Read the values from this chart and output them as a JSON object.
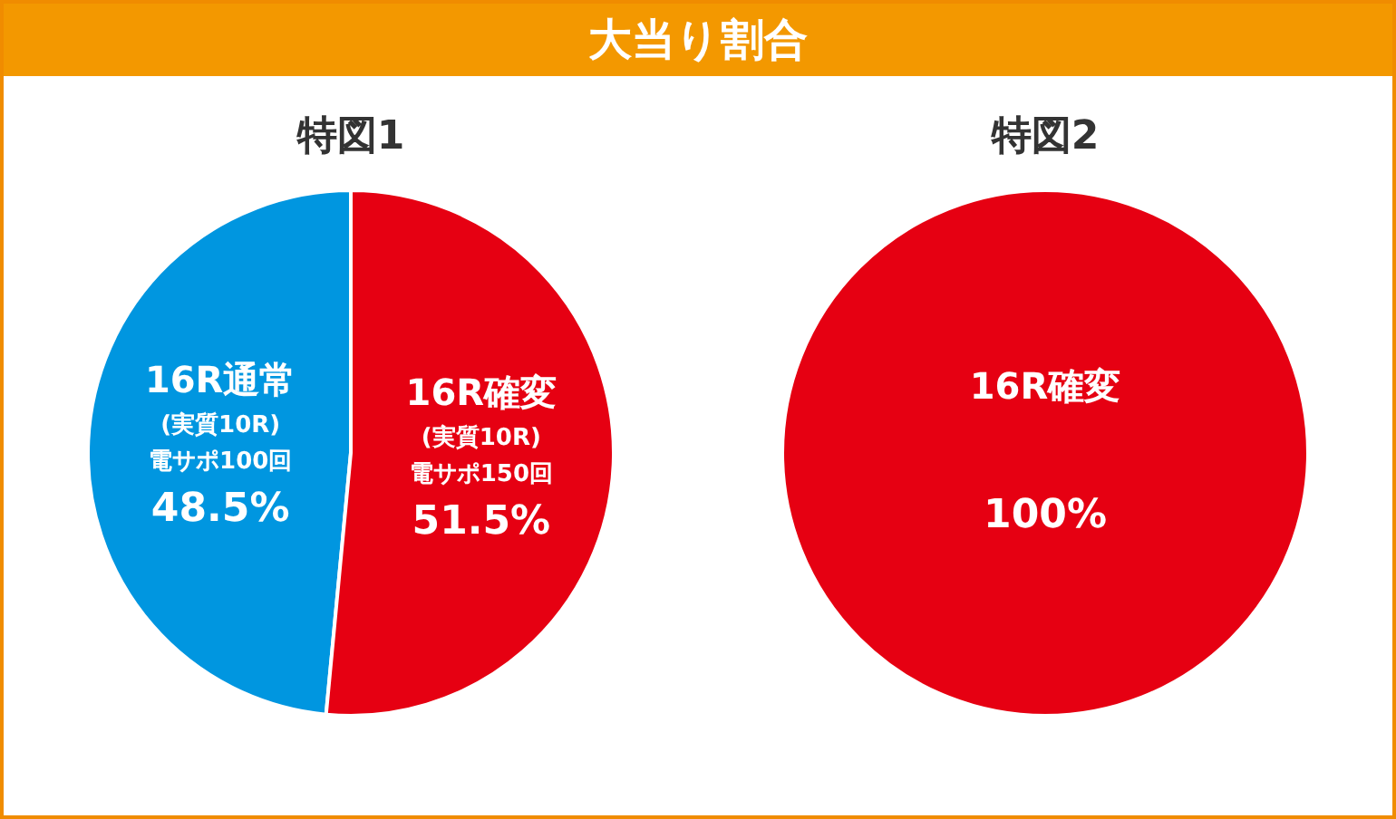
{
  "chart_data": [
    {
      "type": "pie",
      "title": "大当り割合",
      "subtitle": "特図1",
      "categories": [
        "16R通常",
        "16R確変"
      ],
      "values": [
        48.5,
        51.5
      ],
      "colors": [
        "#0096e0",
        "#e60012"
      ],
      "value_labels": [
        "48.5%",
        "51.5%"
      ],
      "annotations": [
        {
          "text": "(実質10R)",
          "x": "16R通常"
        },
        {
          "text": "電サポ100回",
          "x": "16R通常"
        },
        {
          "text": "(実質10R)",
          "x": "16R確変"
        },
        {
          "text": "電サポ150回",
          "x": "16R確変"
        }
      ],
      "legend": false
    },
    {
      "type": "pie",
      "subtitle": "特図2",
      "categories": [
        "16R確変"
      ],
      "values": [
        100
      ],
      "colors": [
        "#e60012"
      ],
      "value_labels": [
        "100%"
      ],
      "legend": false
    }
  ]
}
